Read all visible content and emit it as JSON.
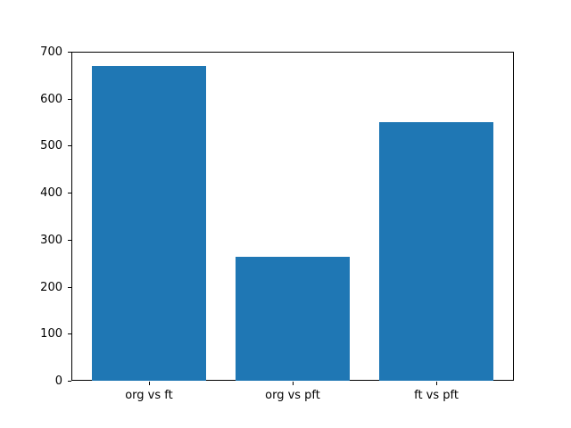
{
  "chart_data": {
    "type": "bar",
    "categories": [
      "org vs ft",
      "org vs pft",
      "ft vs pft"
    ],
    "values": [
      670,
      263,
      550
    ],
    "title": "",
    "xlabel": "",
    "ylabel": "",
    "ylim": [
      0,
      700
    ],
    "yticks": [
      0,
      100,
      200,
      300,
      400,
      500,
      600,
      700
    ],
    "ytick_labels": [
      "0",
      "100",
      "200",
      "300",
      "400",
      "500",
      "600",
      "700"
    ],
    "xlim": [
      -0.54,
      2.54
    ],
    "bar_width_fraction": 0.8,
    "bar_color": "#1f77b4",
    "axis_color": "#000000",
    "background_color": "#ffffff",
    "grid": false,
    "legend": false
  }
}
